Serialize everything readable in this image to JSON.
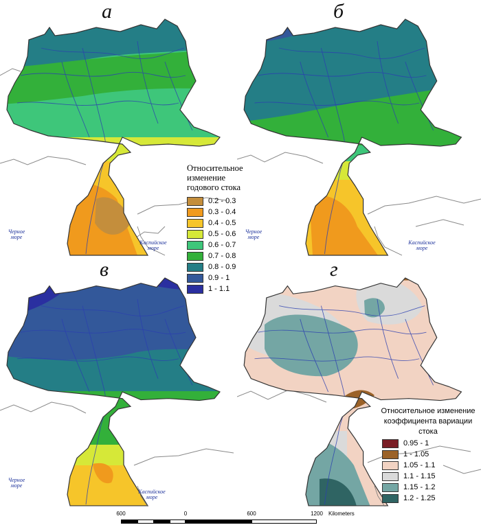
{
  "panels": [
    {
      "letter": "а",
      "caspian": "Каспийское море",
      "black_sea": "Черное море"
    },
    {
      "letter": "б",
      "caspian": "Каспийское море",
      "black_sea": "Черное море"
    },
    {
      "letter": "в",
      "caspian": "Каспийское море",
      "black_sea": "Черное море"
    },
    {
      "letter": "г"
    }
  ],
  "legend_runoff": {
    "title": "Относительное изменение годового стока",
    "items": [
      {
        "label": "0.2 - 0.3",
        "color": "#c48e3c"
      },
      {
        "label": "0.3 - 0.4",
        "color": "#f09a1d"
      },
      {
        "label": "0.4 - 0.5",
        "color": "#f6c52a"
      },
      {
        "label": "0.5 - 0.6",
        "color": "#d6e838"
      },
      {
        "label": "0.6 - 0.7",
        "color": "#3ec67a"
      },
      {
        "label": "0.7 - 0.8",
        "color": "#33b03a"
      },
      {
        "label": "0.8 - 0.9",
        "color": "#247e86"
      },
      {
        "label": "0.9 - 1",
        "color": "#33589a"
      },
      {
        "label": "1 - 1.1",
        "color": "#2a2fa0"
      }
    ]
  },
  "legend_cv": {
    "title": "Относительное изменение коэффициента вариации стока",
    "items": [
      {
        "label": "0.95 - 1",
        "color": "#7a1e26"
      },
      {
        "label": "1 - 1.05",
        "color": "#9b6228"
      },
      {
        "label": "1.05 - 1.1",
        "color": "#f2d3c3"
      },
      {
        "label": "1.1 - 1.15",
        "color": "#dadada"
      },
      {
        "label": "1.15 - 1.2",
        "color": "#74a6a4"
      },
      {
        "label": "1.2 - 1.25",
        "color": "#2f6463"
      }
    ]
  },
  "scalebar": {
    "labels": [
      "600",
      "0",
      "600",
      "1200"
    ],
    "unit": "Kilometers"
  }
}
